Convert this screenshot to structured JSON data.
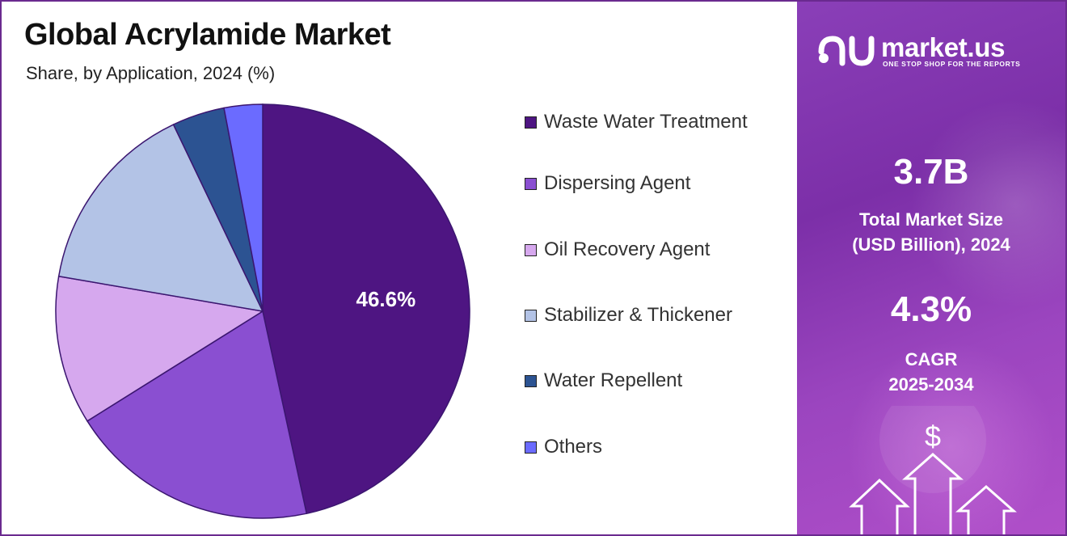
{
  "header": {
    "title": "Global Acrylamide Market",
    "subtitle": "Share, by Application, 2024 (%)"
  },
  "brand": {
    "name": "market.us",
    "tagline": "ONE STOP SHOP FOR THE REPORTS",
    "logo_icon": "market-us-logo-icon"
  },
  "stats": {
    "market_size_value": "3.7B",
    "market_size_label_line1": "Total Market Size",
    "market_size_label_line2": "(USD Billion), 2024",
    "cagr_value": "4.3%",
    "cagr_label_line1": "CAGR",
    "cagr_label_line2": "2025-2034",
    "currency_symbol": "$",
    "decor_icon": "growth-arrows-icon"
  },
  "colors": {
    "panel_accent": "#8a3fb8",
    "border": "#6a2a8f"
  },
  "chart_data": {
    "type": "pie",
    "title": "Global Acrylamide Market",
    "subtitle": "Share, by Application, 2024 (%)",
    "legend_position": "right",
    "start_angle_deg": 0,
    "direction": "clockwise",
    "slices": [
      {
        "label": "Waste Water Treatment",
        "value": 46.6,
        "color": "#4e1582",
        "data_label": "46.6%"
      },
      {
        "label": "Dispersing Agent",
        "value": 19.5,
        "color": "#8a4fd1",
        "data_label": ""
      },
      {
        "label": "Oil Recovery Agent",
        "value": 11.6,
        "color": "#d6a8ee",
        "data_label": ""
      },
      {
        "label": "Stabilizer & Thickener",
        "value": 15.2,
        "color": "#b3c3e6",
        "data_label": ""
      },
      {
        "label": "Water Repellent",
        "value": 4.1,
        "color": "#2c5392",
        "data_label": ""
      },
      {
        "label": "Others",
        "value": 3.0,
        "color": "#6b6bff",
        "data_label": ""
      }
    ]
  }
}
